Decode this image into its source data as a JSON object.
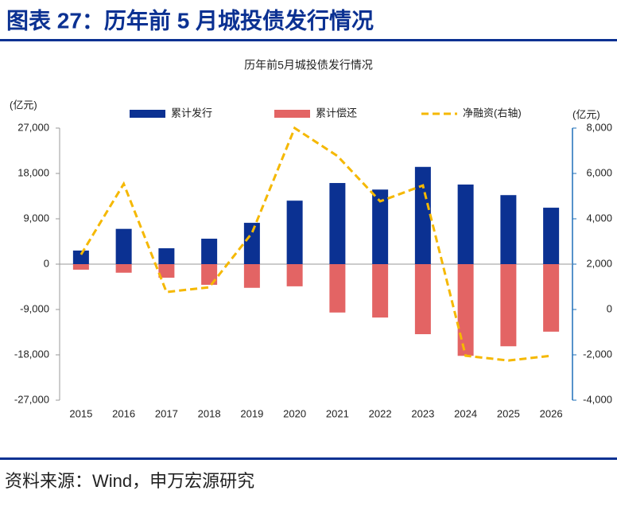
{
  "header": {
    "title": "图表 27：历年前 5 月城投债发行情况"
  },
  "chart_data": {
    "type": "bar",
    "title": "历年前5月城投债发行情况",
    "ylabel": "(亿元)",
    "y2label": "(亿元)",
    "categories": [
      "2015",
      "2016",
      "2017",
      "2018",
      "2019",
      "2020",
      "2021",
      "2022",
      "2023",
      "2024",
      "2025",
      "2026"
    ],
    "series": [
      {
        "name": "累计发行",
        "color": "#0b3192",
        "type": "bar",
        "values": [
          2700,
          7000,
          3150,
          5050,
          8200,
          12600,
          16100,
          14800,
          19300,
          15800,
          13700,
          11200
        ]
      },
      {
        "name": "累计偿还",
        "color": "#e36464",
        "type": "bar",
        "values": [
          -1100,
          -1700,
          -2700,
          -4100,
          -4700,
          -4400,
          -9600,
          -10600,
          -13900,
          -18200,
          -16300,
          -13400
        ]
      },
      {
        "name": "净融资(右轴)",
        "color": "#f5b800",
        "type": "line",
        "axis": "y2",
        "values": [
          2420,
          5540,
          770,
          980,
          3370,
          8000,
          6770,
          4770,
          5470,
          -2040,
          -2250,
          -2040
        ]
      }
    ],
    "ylim": [
      -27000,
      27000
    ],
    "yticks": [
      {
        "value": -27000,
        "label": "-27,000"
      },
      {
        "value": -18000,
        "label": "-18,000"
      },
      {
        "value": -9000,
        "label": "-9,000"
      },
      0,
      {
        "value": 9000,
        "label": "9,000"
      },
      {
        "value": 18000,
        "label": "18,000"
      },
      {
        "value": 27000,
        "label": "27,000"
      }
    ],
    "y2lim": [
      -4000,
      8000
    ],
    "y2ticks": [
      {
        "value": -4000,
        "label": "-4,000"
      },
      {
        "value": -2000,
        "label": "-2,000"
      },
      0,
      {
        "value": 2000,
        "label": "2,000"
      },
      {
        "value": 4000,
        "label": "4,000"
      },
      {
        "value": 6000,
        "label": "6,000"
      },
      {
        "value": 8000,
        "label": "8,000"
      }
    ],
    "legend": "top"
  },
  "footer": {
    "source": "资料来源：Wind，申万宏源研究"
  }
}
